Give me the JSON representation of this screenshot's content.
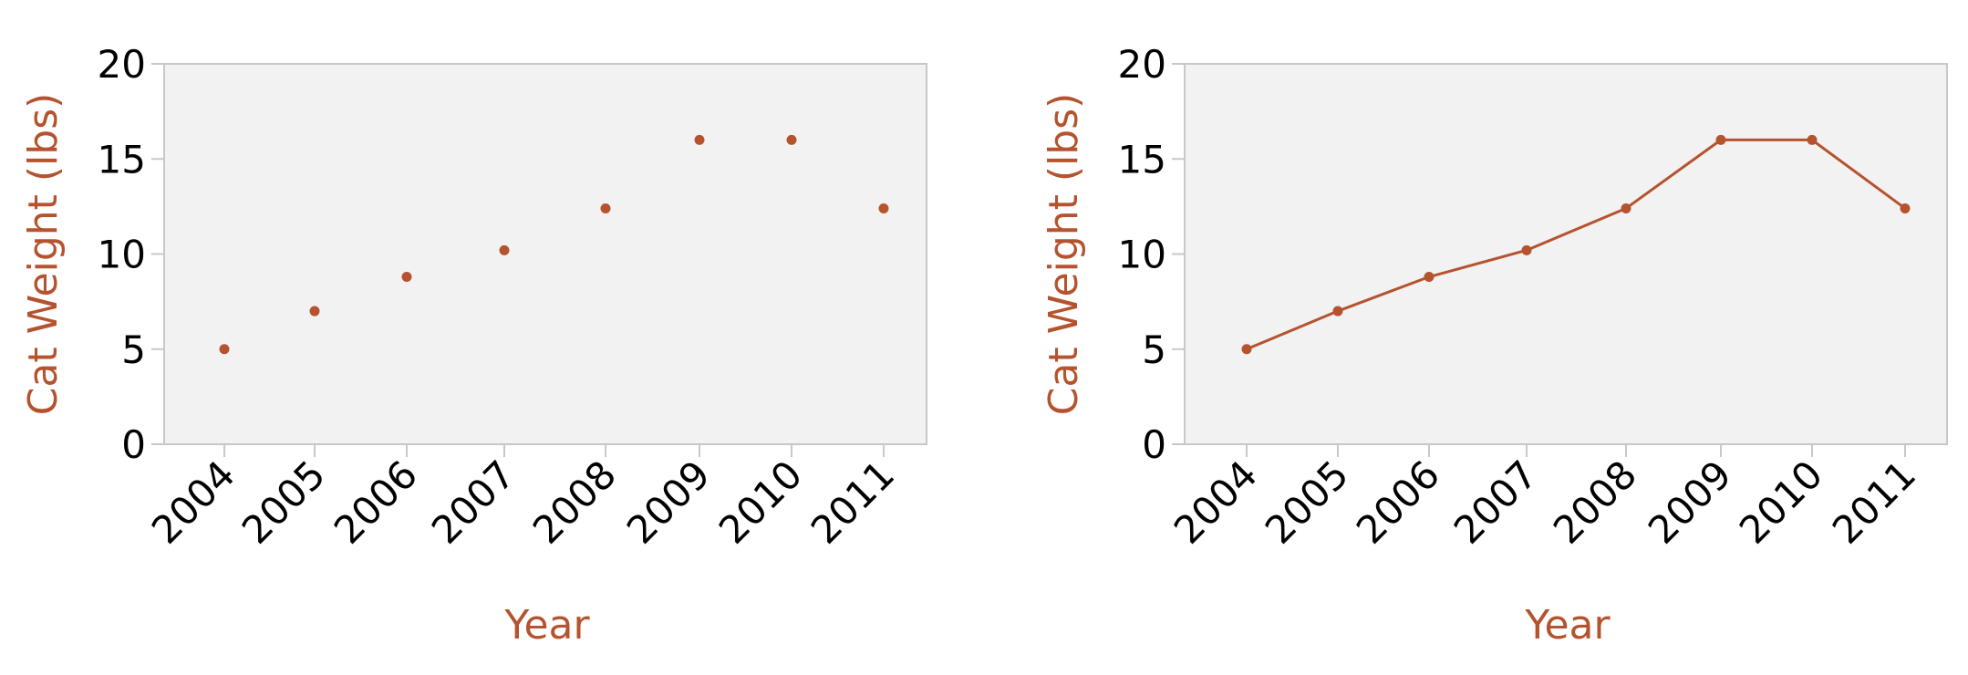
{
  "colors": {
    "mark": "#b5532f",
    "plot_background": "#f2f2f2",
    "plot_border": "#c8c8c8",
    "tick_text": "#000000"
  },
  "chart_data": [
    {
      "type": "scatter",
      "xlabel": "Year",
      "ylabel": "Cat Weight (lbs)",
      "categories": [
        "2004",
        "2005",
        "2006",
        "2007",
        "2008",
        "2009",
        "2010",
        "2011"
      ],
      "series": [
        {
          "values": [
            5,
            7,
            8.8,
            10.2,
            12.4,
            16,
            16,
            12.4
          ]
        }
      ],
      "ylim": [
        0,
        20
      ],
      "yticks": [
        "0",
        "5",
        "10",
        "15",
        "20"
      ],
      "grid": false,
      "legend": "none"
    },
    {
      "type": "line",
      "xlabel": "Year",
      "ylabel": "Cat Weight (lbs)",
      "categories": [
        "2004",
        "2005",
        "2006",
        "2007",
        "2008",
        "2009",
        "2010",
        "2011"
      ],
      "series": [
        {
          "values": [
            5,
            7,
            8.8,
            10.2,
            12.4,
            16,
            16,
            12.4
          ]
        }
      ],
      "ylim": [
        0,
        20
      ],
      "yticks": [
        "0",
        "5",
        "10",
        "15",
        "20"
      ],
      "grid": false,
      "legend": "none"
    }
  ]
}
